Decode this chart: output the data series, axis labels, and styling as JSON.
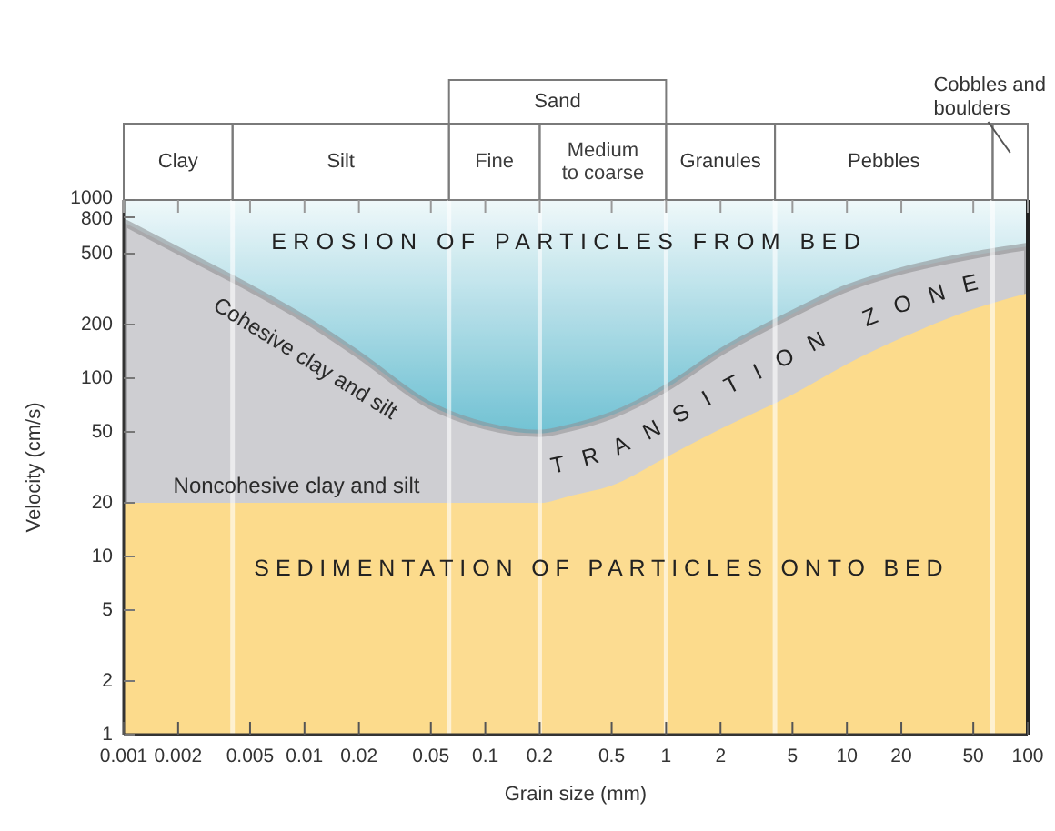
{
  "chart_data": {
    "type": "area",
    "xlabel": "Grain size (mm)",
    "ylabel": "Velocity (cm/s)",
    "log": "xy",
    "xlim": [
      0.001,
      100
    ],
    "xticks": [
      0.001,
      0.002,
      0.005,
      0.01,
      0.02,
      0.05,
      0.1,
      0.2,
      0.5,
      1,
      2,
      5,
      10,
      20,
      50,
      100
    ],
    "ylim": [
      1,
      1000
    ],
    "yticks": [
      1,
      2,
      5,
      10,
      20,
      50,
      100,
      200,
      500,
      800,
      1000
    ],
    "series": [
      {
        "name": "EROSION OF PARTICLES FROM BED",
        "color": "#55b6cb",
        "x": [
          0.001,
          100
        ],
        "values": [
          1000,
          1000
        ]
      },
      {
        "name": "TRANSITION ZONE",
        "color": "#c9c9cd",
        "x": [
          0.001,
          0.002,
          0.005,
          0.01,
          0.02,
          0.05,
          0.1,
          0.2,
          0.3,
          0.5,
          1,
          2,
          5,
          10,
          20,
          50,
          100
        ],
        "values": [
          750,
          520,
          320,
          215,
          135,
          70,
          54,
          49,
          53,
          62,
          88,
          140,
          230,
          320,
          400,
          490,
          550
        ]
      },
      {
        "name": "SEDIMENTATION OF PARTICLES ONTO BED",
        "color": "#fcd77f",
        "x": [
          0.001,
          0.2,
          0.3,
          0.5,
          1,
          2,
          5,
          10,
          20,
          50,
          100
        ],
        "values": [
          20,
          20,
          22,
          25,
          36,
          52,
          81,
          120,
          168,
          244,
          300
        ]
      }
    ],
    "bands": [
      {
        "axis": "x",
        "from": 0.001,
        "to": 0.004,
        "label": "Clay",
        "color": "#ffffff"
      },
      {
        "axis": "x",
        "from": 0.004,
        "to": 0.063,
        "label": "Silt",
        "color": "#ffffff"
      },
      {
        "axis": "x",
        "from": 0.063,
        "to": 0.2,
        "label": "Fine",
        "color": "#ffffff"
      },
      {
        "axis": "x",
        "from": 0.2,
        "to": 1,
        "label": "Medium to coarse",
        "color": "#ffffff"
      },
      {
        "axis": "x",
        "from": 1,
        "to": 4,
        "label": "Granules",
        "color": "#ffffff"
      },
      {
        "axis": "x",
        "from": 4,
        "to": 64,
        "label": "Pebbles",
        "color": "#ffffff"
      },
      {
        "axis": "x",
        "from": 64,
        "to": 100,
        "label": "Cobbles and boulders",
        "color": "#ffffff"
      },
      {
        "axis": "x",
        "from": 0.063,
        "to": 1,
        "label": "Sand",
        "color": "#ffffff"
      }
    ],
    "annotations": [
      "Cohesive clay and silt",
      "Noncohesive clay and silt"
    ]
  }
}
